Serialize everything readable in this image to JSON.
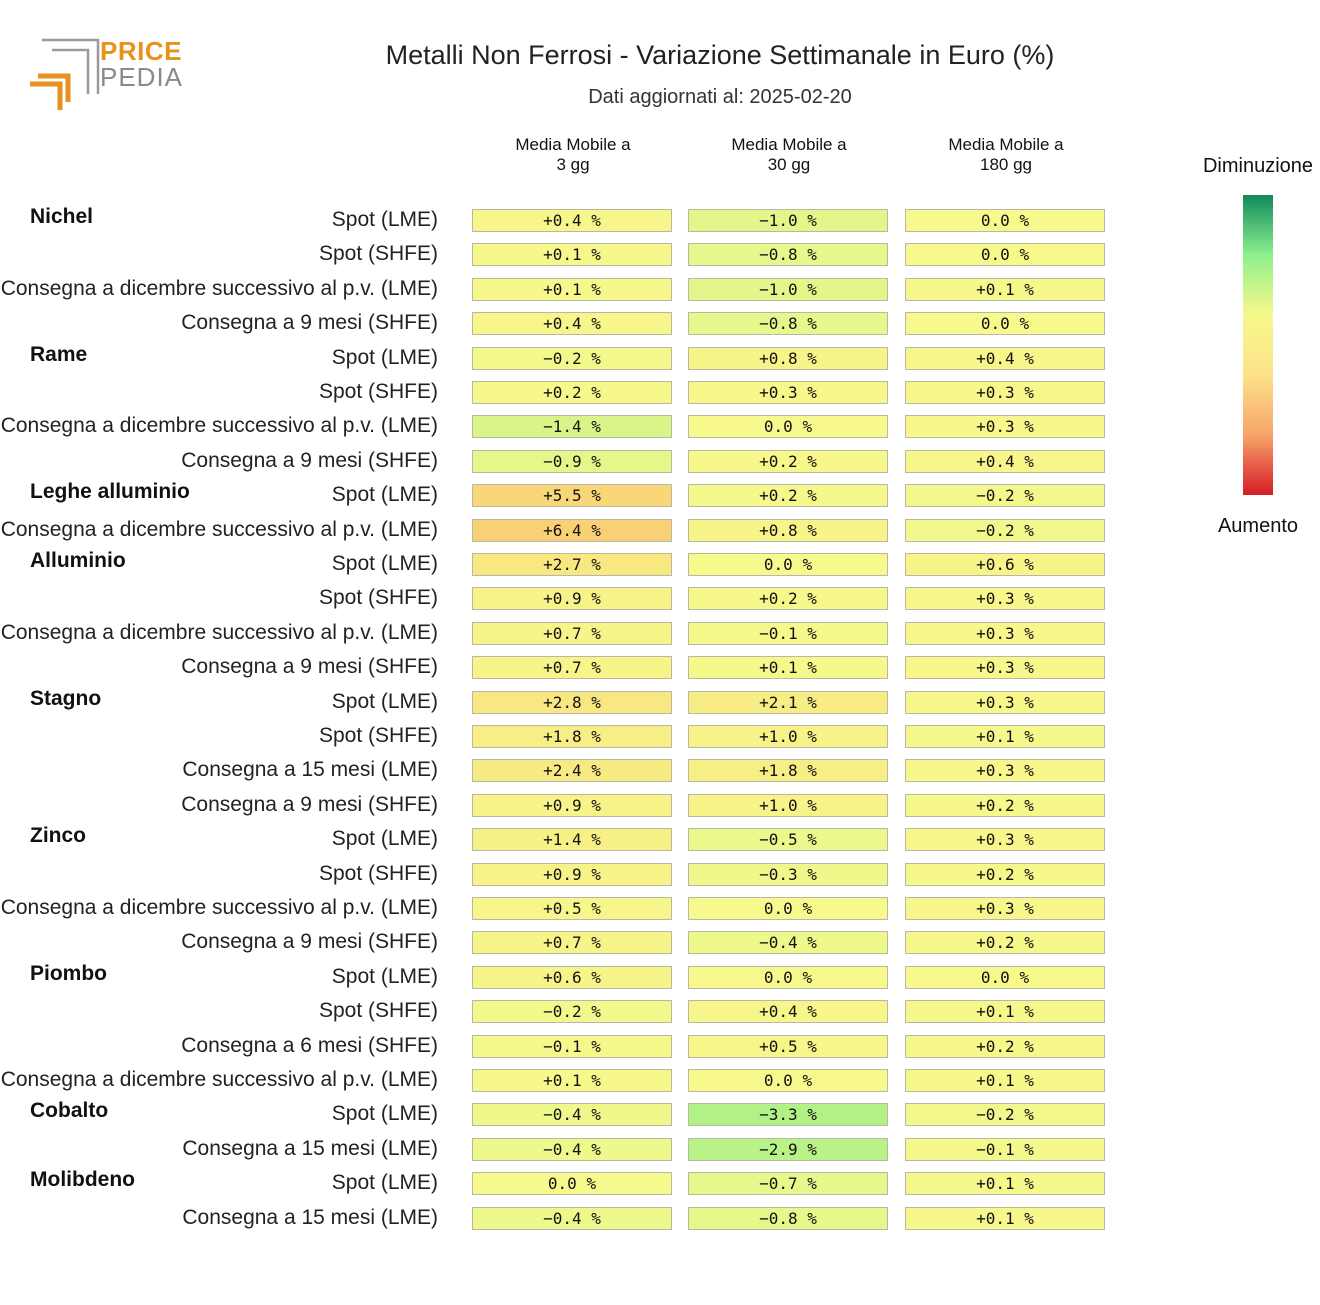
{
  "logo": {
    "line1": "PRICE",
    "line2": "PEDIA",
    "accent": "#e8921b",
    "grey": "#8a8a8a"
  },
  "title": "Metalli Non Ferrosi - Variazione Settimanale in Euro (%)",
  "subtitle": "Dati aggiornati al: 2025-02-20",
  "legend": {
    "top": "Diminuzione",
    "bottom": "Aumento",
    "colors": [
      "#0f8a5a",
      "#8ef08e",
      "#f6f98a",
      "#fde28a",
      "#f7a46a",
      "#d61a26"
    ]
  },
  "chart_data": {
    "type": "heatmap",
    "title": "Metalli Non Ferrosi - Variazione Settimanale in Euro (%)",
    "columns": [
      "Media Mobile a\n3 gg",
      "Media Mobile a\n30 gg",
      "Media Mobile a\n180 gg"
    ],
    "unit": "%",
    "groups": [
      {
        "name": "Nichel",
        "rows": [
          {
            "label": "Spot (LME)",
            "values": [
              0.4,
              -1.0,
              0.0
            ]
          },
          {
            "label": "Spot (SHFE)",
            "values": [
              0.1,
              -0.8,
              0.0
            ]
          },
          {
            "label": "Consegna a dicembre successivo al p.v. (LME)",
            "values": [
              0.1,
              -1.0,
              0.1
            ]
          },
          {
            "label": "Consegna a 9 mesi (SHFE)",
            "values": [
              0.4,
              -0.8,
              0.0
            ]
          }
        ]
      },
      {
        "name": "Rame",
        "rows": [
          {
            "label": "Spot (LME)",
            "values": [
              -0.2,
              0.8,
              0.4
            ]
          },
          {
            "label": "Spot (SHFE)",
            "values": [
              0.2,
              0.3,
              0.3
            ]
          },
          {
            "label": "Consegna a dicembre successivo al p.v. (LME)",
            "values": [
              -1.4,
              0.0,
              0.3
            ]
          },
          {
            "label": "Consegna a 9 mesi (SHFE)",
            "values": [
              -0.9,
              0.2,
              0.4
            ]
          }
        ]
      },
      {
        "name": "Leghe alluminio",
        "rows": [
          {
            "label": "Spot (LME)",
            "values": [
              5.5,
              0.2,
              -0.2
            ]
          },
          {
            "label": "Consegna a dicembre successivo al p.v. (LME)",
            "values": [
              6.4,
              0.8,
              -0.2
            ]
          }
        ]
      },
      {
        "name": "Alluminio",
        "rows": [
          {
            "label": "Spot (LME)",
            "values": [
              2.7,
              0.0,
              0.6
            ]
          },
          {
            "label": "Spot (SHFE)",
            "values": [
              0.9,
              0.2,
              0.3
            ]
          },
          {
            "label": "Consegna a dicembre successivo al p.v. (LME)",
            "values": [
              0.7,
              -0.1,
              0.3
            ]
          },
          {
            "label": "Consegna a 9 mesi (SHFE)",
            "values": [
              0.7,
              0.1,
              0.3
            ]
          }
        ]
      },
      {
        "name": "Stagno",
        "rows": [
          {
            "label": "Spot (LME)",
            "values": [
              2.8,
              2.1,
              0.3
            ]
          },
          {
            "label": "Spot (SHFE)",
            "values": [
              1.8,
              1.0,
              0.1
            ]
          },
          {
            "label": "Consegna a 15 mesi (LME)",
            "values": [
              2.4,
              1.8,
              0.3
            ]
          },
          {
            "label": "Consegna a 9 mesi (SHFE)",
            "values": [
              0.9,
              1.0,
              0.2
            ]
          }
        ]
      },
      {
        "name": "Zinco",
        "rows": [
          {
            "label": "Spot (LME)",
            "values": [
              1.4,
              -0.5,
              0.3
            ]
          },
          {
            "label": "Spot (SHFE)",
            "values": [
              0.9,
              -0.3,
              0.2
            ]
          },
          {
            "label": "Consegna a dicembre successivo al p.v. (LME)",
            "values": [
              0.5,
              0.0,
              0.3
            ]
          },
          {
            "label": "Consegna a 9 mesi (SHFE)",
            "values": [
              0.7,
              -0.4,
              0.2
            ]
          }
        ]
      },
      {
        "name": "Piombo",
        "rows": [
          {
            "label": "Spot (LME)",
            "values": [
              0.6,
              0.0,
              0.0
            ]
          },
          {
            "label": "Spot (SHFE)",
            "values": [
              -0.2,
              0.4,
              0.1
            ]
          },
          {
            "label": "Consegna a 6 mesi (SHFE)",
            "values": [
              -0.1,
              0.5,
              0.2
            ]
          },
          {
            "label": "Consegna a dicembre successivo al p.v. (LME)",
            "values": [
              0.1,
              0.0,
              0.1
            ]
          }
        ]
      },
      {
        "name": "Cobalto",
        "rows": [
          {
            "label": "Spot (LME)",
            "values": [
              -0.4,
              -3.3,
              -0.2
            ]
          },
          {
            "label": "Consegna a 15 mesi (LME)",
            "values": [
              -0.4,
              -2.9,
              -0.1
            ]
          }
        ]
      },
      {
        "name": "Molibdeno",
        "rows": [
          {
            "label": "Spot (LME)",
            "values": [
              0.0,
              -0.7,
              0.1
            ]
          },
          {
            "label": "Consegna a 15 mesi (LME)",
            "values": [
              -0.4,
              -0.8,
              0.1
            ]
          }
        ]
      }
    ]
  }
}
